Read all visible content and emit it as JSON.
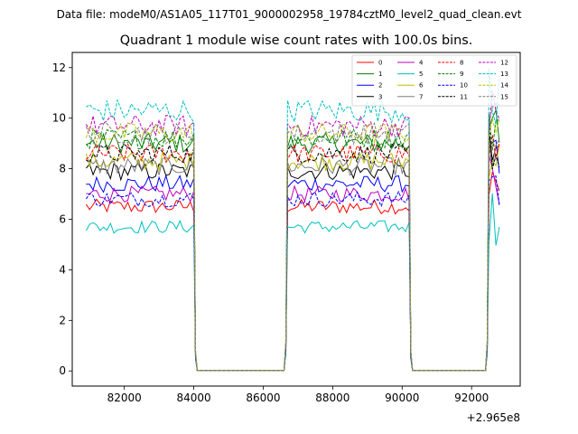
{
  "chart_data": {
    "type": "line",
    "suptitle": "Data file: modeM0/AS1A05_117T01_9000002958_19784cztM0_level2_quad_clean.evt",
    "title": "Quadrant 1 module wise count rates with 100.0s bins.",
    "offset_text": "+2.965e8",
    "xlim": [
      80500,
      93400
    ],
    "ylim": [
      -0.6,
      12.6
    ],
    "grid": false,
    "legend_position": "top-right",
    "x_ticks": [
      82000,
      84000,
      86000,
      88000,
      90000,
      92000
    ],
    "x_tick_labels": [
      "82000",
      "84000",
      "86000",
      "88000",
      "90000",
      "92000"
    ],
    "y_ticks": [
      0,
      2,
      4,
      6,
      8,
      10,
      12
    ],
    "y_tick_labels": [
      "0",
      "2",
      "4",
      "6",
      "8",
      "10",
      "12"
    ],
    "segments": [
      [
        80900,
        84000
      ],
      [
        86700,
        90200
      ],
      [
        92500,
        92800
      ]
    ],
    "gaps": [
      [
        84100,
        86600
      ],
      [
        90300,
        92400
      ]
    ],
    "series": [
      {
        "name": "0",
        "color": "#ff0000",
        "dash": "solid",
        "level": 6.5
      },
      {
        "name": "1",
        "color": "#008000",
        "dash": "solid",
        "level": 9.0
      },
      {
        "name": "2",
        "color": "#0000ff",
        "dash": "solid",
        "level": 7.4
      },
      {
        "name": "3",
        "color": "#000000",
        "dash": "solid",
        "level": 7.9
      },
      {
        "name": "4",
        "color": "#bf00bf",
        "dash": "solid",
        "level": 7.0
      },
      {
        "name": "5",
        "color": "#00bfbf",
        "dash": "solid",
        "level": 5.7
      },
      {
        "name": "6",
        "color": "#bfbf00",
        "dash": "solid",
        "level": 8.3
      },
      {
        "name": "7",
        "color": "#7f7f7f",
        "dash": "solid",
        "level": 8.1
      },
      {
        "name": "8",
        "color": "#ff0000",
        "dash": "dashed",
        "level": 8.6
      },
      {
        "name": "9",
        "color": "#008000",
        "dash": "dashed",
        "level": 9.2
      },
      {
        "name": "10",
        "color": "#0000ff",
        "dash": "dashed",
        "level": 6.8
      },
      {
        "name": "11",
        "color": "#000000",
        "dash": "dashed",
        "level": 8.6
      },
      {
        "name": "12",
        "color": "#bf00bf",
        "dash": "dashed",
        "level": 9.7
      },
      {
        "name": "13",
        "color": "#00bfbf",
        "dash": "dashed",
        "level": 10.3
      },
      {
        "name": "14",
        "color": "#bfbf00",
        "dash": "dashed",
        "level": 9.4
      },
      {
        "name": "15",
        "color": "#7f7f7f",
        "dash": "dashed",
        "level": 9.4
      }
    ]
  }
}
